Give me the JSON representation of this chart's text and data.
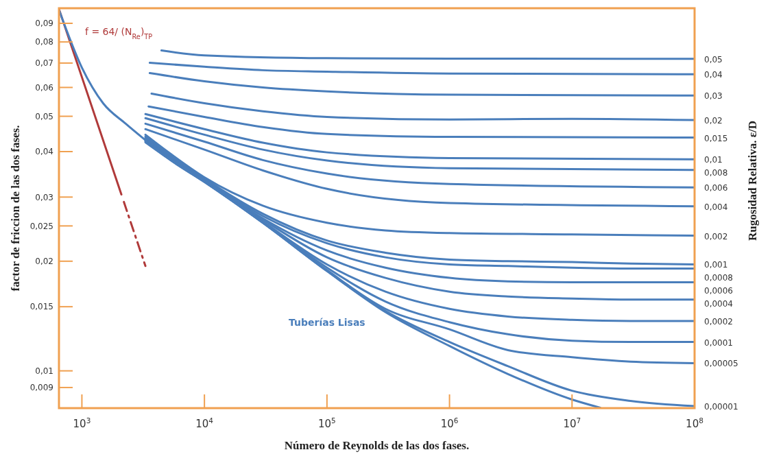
{
  "chart_data": {
    "type": "line",
    "xlabel": "Número de Reynolds de las dos fases.",
    "ylabel": "factor de friccion de las dos fases.",
    "y2label": "Rugosidad Relativa. ε/D",
    "log": "xy",
    "xlim": [
      650,
      100000000
    ],
    "ylim": [
      0.0079,
      0.099
    ],
    "xticks": [
      {
        "value": 1000,
        "label": "10$^{3}$"
      },
      {
        "value": 10000,
        "label": "10$^{4}$"
      },
      {
        "value": 100000,
        "label": "10$^{5}$"
      },
      {
        "value": 1000000,
        "label": "10$^{6}$"
      },
      {
        "value": 10000000,
        "label": "10$^{7}$"
      },
      {
        "value": 100000000,
        "label": "10$^{8}$"
      }
    ],
    "yticks": [
      {
        "value": 0.009,
        "label": "0,009"
      },
      {
        "value": 0.01,
        "label": "0,01"
      },
      {
        "value": 0.015,
        "label": "0,015"
      },
      {
        "value": 0.02,
        "label": "0,02"
      },
      {
        "value": 0.025,
        "label": "0,025"
      },
      {
        "value": 0.03,
        "label": "0,03"
      },
      {
        "value": 0.04,
        "label": "0,04"
      },
      {
        "value": 0.05,
        "label": "0,05"
      },
      {
        "value": 0.06,
        "label": "0,06"
      },
      {
        "value": 0.07,
        "label": "0,07"
      },
      {
        "value": 0.08,
        "label": "0,08"
      },
      {
        "value": 0.09,
        "label": "0,09"
      }
    ],
    "series": [
      {
        "name": "f = 64/ (N$_{Re}$)$_{TP}$",
        "color": "#b03a3a",
        "x": [
          650,
          2100
        ],
        "values": [
          0.0985,
          0.0305
        ],
        "line_style": "solid"
      },
      {
        "color": "#b03a3a",
        "x": [
          2200,
          3300
        ],
        "values": [
          0.0291,
          0.0194
        ],
        "line_style": "dashed"
      },
      {
        "name": "Tuberías Lisas",
        "color": "#4a7ebb",
        "x": [
          650,
          1000,
          1490,
          2280,
          3300,
          5000,
          10000,
          30000,
          100000,
          300000,
          1000000,
          3000000,
          10000000,
          17000000
        ],
        "values": [
          0.098,
          0.068,
          0.0543,
          0.0477,
          0.043,
          0.0384,
          0.033,
          0.0255,
          0.0188,
          0.0145,
          0.0117,
          0.0098,
          0.00834,
          0.00792
        ]
      },
      {
        "name": "0,05",
        "color": "#4a7ebb",
        "x": [
          4460,
          10000,
          100000,
          1000000,
          100000000
        ],
        "values": [
          0.0758,
          0.0735,
          0.0722,
          0.072,
          0.0719
        ]
      },
      {
        "name": "0,04",
        "color": "#4a7ebb",
        "x": [
          3580,
          10000,
          30000,
          100000,
          1000000,
          100000000
        ],
        "values": [
          0.0701,
          0.0684,
          0.0669,
          0.0663,
          0.0655,
          0.0652
        ]
      },
      {
        "name": "0,03",
        "color": "#4a7ebb",
        "x": [
          3580,
          10000,
          30000,
          100000,
          1000000,
          100000000
        ],
        "values": [
          0.0657,
          0.0624,
          0.06,
          0.0585,
          0.0573,
          0.057
        ]
      },
      {
        "name": "0,02",
        "color": "#4a7ebb",
        "x": [
          3700,
          10000,
          30000,
          100000,
          1000000,
          10000000,
          100000000
        ],
        "values": [
          0.0577,
          0.0543,
          0.0516,
          0.0498,
          0.049,
          0.0492,
          0.0488
        ]
      },
      {
        "name": "0,015",
        "color": "#4a7ebb",
        "x": [
          3500,
          10000,
          30000,
          100000,
          1000000,
          100000000
        ],
        "values": [
          0.0532,
          0.0498,
          0.0467,
          0.0447,
          0.0439,
          0.0437
        ]
      },
      {
        "name": "0,01",
        "color": "#4a7ebb",
        "x": [
          3300,
          10000,
          30000,
          100000,
          1000000,
          100000000
        ],
        "values": [
          0.0507,
          0.0461,
          0.0423,
          0.0398,
          0.0384,
          0.0381
        ]
      },
      {
        "name": "0,008",
        "color": "#4a7ebb",
        "x": [
          3300,
          10000,
          30000,
          100000,
          1000000,
          100000000
        ],
        "values": [
          0.0494,
          0.0445,
          0.0405,
          0.0378,
          0.036,
          0.0356
        ]
      },
      {
        "name": "0,006",
        "color": "#4a7ebb",
        "x": [
          3300,
          10000,
          30000,
          100000,
          1000000,
          100000000
        ],
        "values": [
          0.0477,
          0.0426,
          0.0379,
          0.0348,
          0.0326,
          0.0319
        ]
      },
      {
        "name": "0,004",
        "color": "#4a7ebb",
        "x": [
          3300,
          10000,
          30000,
          100000,
          1000000,
          100000000
        ],
        "values": [
          0.0461,
          0.0405,
          0.0355,
          0.0316,
          0.0289,
          0.0283
        ]
      },
      {
        "name": "0,002",
        "color": "#4a7ebb",
        "x": [
          3300,
          5000,
          10000,
          30000,
          100000,
          300000,
          1000000,
          10000000,
          100000000
        ],
        "values": [
          0.0445,
          0.04,
          0.034,
          0.0284,
          0.0255,
          0.0243,
          0.0239,
          0.0237,
          0.0235
        ]
      },
      {
        "name": "0,001",
        "color": "#4a7ebb",
        "x": [
          3300,
          5000,
          10000,
          30000,
          100000,
          300000,
          1000000,
          3000000,
          10000000,
          30000000,
          100000000
        ],
        "values": [
          0.044,
          0.0395,
          0.0337,
          0.027,
          0.0228,
          0.0211,
          0.0202,
          0.02,
          0.0199,
          0.0197,
          0.0196
        ]
      },
      {
        "name": "0,0008",
        "color": "#4a7ebb",
        "x": [
          3300,
          5000,
          10000,
          30000,
          100000,
          300000,
          1000000,
          3000000,
          10000000,
          30000000,
          100000000
        ],
        "values": [
          0.0437,
          0.0392,
          0.0336,
          0.0266,
          0.0224,
          0.0205,
          0.0196,
          0.0194,
          0.0192,
          0.0191,
          0.0191
        ]
      },
      {
        "name": "0,0006",
        "color": "#4a7ebb",
        "x": [
          3300,
          5000,
          10000,
          30000,
          100000,
          300000,
          1000000,
          3000000,
          10000000,
          30000000,
          100000000
        ],
        "values": [
          0.0434,
          0.039,
          0.0335,
          0.0262,
          0.0214,
          0.0192,
          0.018,
          0.0176,
          0.0175,
          0.0175,
          0.0175
        ]
      },
      {
        "name": "0,0004",
        "color": "#4a7ebb",
        "x": [
          3300,
          5000,
          10000,
          30000,
          100000,
          300000,
          1000000,
          3000000,
          10000000,
          30000000,
          100000000
        ],
        "values": [
          0.0432,
          0.0388,
          0.0334,
          0.026,
          0.0205,
          0.018,
          0.0165,
          0.016,
          0.0158,
          0.0157,
          0.0157
        ]
      },
      {
        "name": "0,0002",
        "color": "#4a7ebb",
        "x": [
          3300,
          5000,
          10000,
          30000,
          100000,
          300000,
          1000000,
          3000000,
          10000000,
          30000000,
          100000000
        ],
        "values": [
          0.043,
          0.0387,
          0.0333,
          0.0257,
          0.0196,
          0.0165,
          0.0148,
          0.0141,
          0.0138,
          0.0137,
          0.0137
        ]
      },
      {
        "name": "0,0001",
        "color": "#4a7ebb",
        "x": [
          3300,
          5000,
          10000,
          30000,
          100000,
          300000,
          1000000,
          3000000,
          10000000,
          30000000,
          100000000
        ],
        "values": [
          0.0428,
          0.0386,
          0.0332,
          0.0256,
          0.0192,
          0.0155,
          0.0136,
          0.0126,
          0.0121,
          0.012,
          0.012
        ]
      },
      {
        "name": "0,00005",
        "color": "#4a7ebb",
        "x": [
          3300,
          5000,
          10000,
          30000,
          100000,
          300000,
          1000000,
          3000000,
          10000000,
          30000000,
          100000000
        ],
        "values": [
          0.0426,
          0.0385,
          0.0331,
          0.0255,
          0.0189,
          0.0148,
          0.013,
          0.0114,
          0.0109,
          0.0106,
          0.0105
        ]
      },
      {
        "name": "0,00001",
        "color": "#4a7ebb",
        "x": [
          3300,
          5000,
          10000,
          30000,
          100000,
          300000,
          1000000,
          3000000,
          10000000,
          30000000,
          100000000
        ],
        "values": [
          0.0424,
          0.0384,
          0.033,
          0.0255,
          0.0188,
          0.0146,
          0.012,
          0.0103,
          0.00882,
          0.00827,
          0.008
        ]
      }
    ]
  }
}
